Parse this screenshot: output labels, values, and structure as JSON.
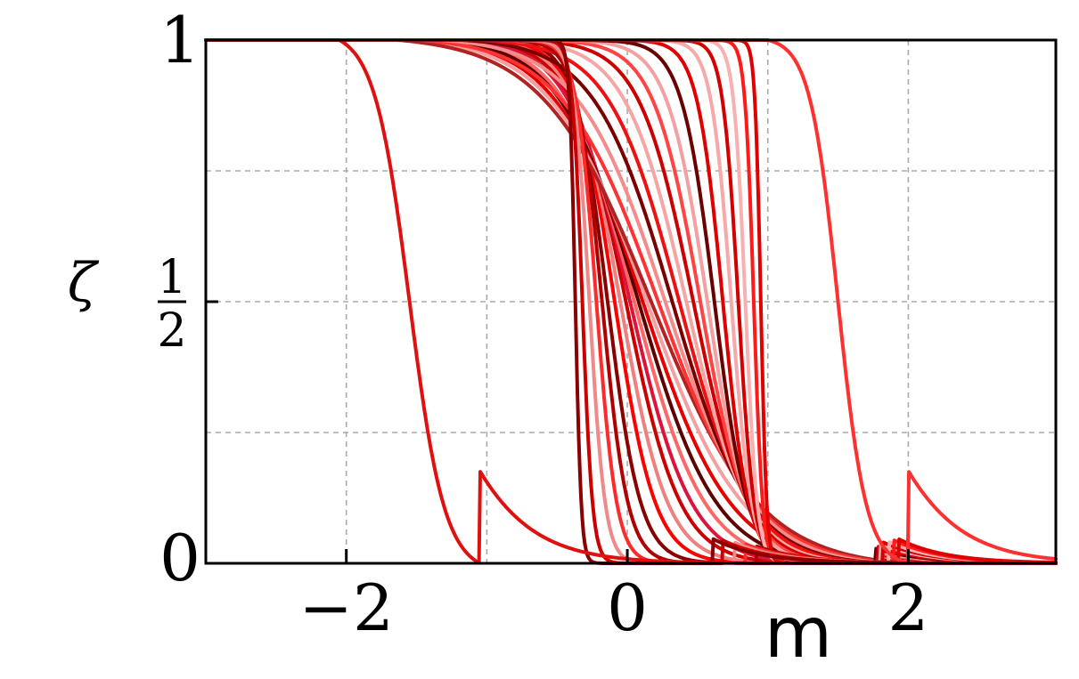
{
  "chart_data": {
    "type": "line",
    "xlabel": "m",
    "ylabel": "ζ",
    "xlim": [
      -3.0,
      3.05
    ],
    "ylim": [
      0,
      1
    ],
    "grid": true,
    "grid_style": "dashed",
    "legend": "none",
    "x_ticks": [
      {
        "value": -2,
        "label": "−2"
      },
      {
        "value": 0,
        "label": "0"
      },
      {
        "value": 2,
        "label": "2"
      }
    ],
    "y_ticks": [
      {
        "value": 0,
        "label": "0"
      },
      {
        "value": 0.5,
        "numerator": "1",
        "denominator": "2"
      },
      {
        "value": 1,
        "label": "1"
      }
    ],
    "x_gridlines": [
      -2,
      -1,
      0,
      1,
      2
    ],
    "y_gridlines": [
      0,
      0.25,
      0.5,
      0.75,
      1
    ],
    "series_model": "zeta(m) = 1/2 - (1/2) * tanh(k*(m - c)) / tanh(k*L) for |m - c| <= L; logistic tails 1/(1+exp(t*(m - c))) outside",
    "series": [
      {
        "k": 4.3,
        "center": -0.14,
        "half_width": 1.15,
        "tail_slope": 2.2,
        "color": "#8b0000"
      },
      {
        "k": 3.5,
        "center": -0.09,
        "half_width": 1.2,
        "tail_slope": 2.2,
        "color": "#ff0000"
      },
      {
        "k": 3.0,
        "center": -0.05,
        "half_width": 1.25,
        "tail_slope": 2.2,
        "color": "#f08080"
      },
      {
        "k": 2.6,
        "center": -0.01,
        "half_width": 1.3,
        "tail_slope": 2.2,
        "color": "#cc0000"
      },
      {
        "k": 2.3,
        "center": 0.02,
        "half_width": 1.35,
        "tail_slope": 2.2,
        "color": "#dc143c"
      },
      {
        "k": 2.0,
        "center": 0.05,
        "half_width": 1.45,
        "tail_slope": 2.2,
        "color": "#ff6666"
      },
      {
        "k": 1.8,
        "center": 0.08,
        "half_width": 1.5,
        "tail_slope": 2.2,
        "color": "#5c0000"
      },
      {
        "k": 1.6,
        "center": 0.11,
        "half_width": 1.6,
        "tail_slope": 2.2,
        "color": "#e60000"
      },
      {
        "k": 1.45,
        "center": 0.14,
        "half_width": 1.7,
        "tail_slope": 2.2,
        "color": "#f4a0a0"
      },
      {
        "k": 1.3,
        "center": 0.17,
        "half_width": 1.8,
        "tail_slope": 2.2,
        "color": "#b22222"
      },
      {
        "k": 1.45,
        "center": 0.22,
        "half_width": 1.7,
        "tail_slope": 2.2,
        "color": "#ff3333"
      },
      {
        "k": 1.6,
        "center": 0.27,
        "half_width": 1.6,
        "tail_slope": 2.2,
        "color": "#f58c8c"
      },
      {
        "k": 1.8,
        "center": 0.32,
        "half_width": 1.5,
        "tail_slope": 2.2,
        "color": "#7a0000"
      },
      {
        "k": 2.0,
        "center": 0.37,
        "half_width": 1.45,
        "tail_slope": 2.2,
        "color": "#ee1111"
      },
      {
        "k": 2.3,
        "center": 0.42,
        "half_width": 1.35,
        "tail_slope": 2.2,
        "color": "#f6a5a5"
      },
      {
        "k": 2.6,
        "center": 0.47,
        "half_width": 1.3,
        "tail_slope": 2.2,
        "color": "#cc0000"
      },
      {
        "k": 3.0,
        "center": 0.52,
        "half_width": 1.25,
        "tail_slope": 2.2,
        "color": "#ff4444"
      },
      {
        "k": 3.5,
        "center": 0.57,
        "half_width": 1.2,
        "tail_slope": 2.2,
        "color": "#f5a0a0"
      },
      {
        "k": 4.3,
        "center": 0.62,
        "half_width": 1.15,
        "tail_slope": 2.2,
        "color": "#6b0000"
      },
      {
        "k": 5.5,
        "center": 0.68,
        "half_width": 1.1,
        "tail_slope": 2.2,
        "color": "#e00000"
      },
      {
        "k": 7.0,
        "center": 0.74,
        "half_width": 1.06,
        "tail_slope": 2.2,
        "color": "#f7a8a8"
      },
      {
        "k": 9.0,
        "center": 0.79,
        "half_width": 1.03,
        "tail_slope": 2.2,
        "color": "#d40000"
      },
      {
        "k": 12.0,
        "center": 0.84,
        "half_width": 1.02,
        "tail_slope": 2.2,
        "color": "#f9b0b0"
      },
      {
        "k": 16.0,
        "center": 0.9,
        "half_width": 1.0,
        "tail_slope": 2.2,
        "color": "#ff1a1a"
      },
      {
        "k": 24.0,
        "center": 0.95,
        "half_width": 0.98,
        "tail_slope": 2.2,
        "color": "#e00000"
      },
      {
        "k": 5.5,
        "center": -0.18,
        "half_width": 1.1,
        "tail_slope": 2.2,
        "color": "#b00000"
      },
      {
        "k": 7.0,
        "center": -0.22,
        "half_width": 1.06,
        "tail_slope": 2.2,
        "color": "#ff2a2a"
      },
      {
        "k": 9.0,
        "center": -0.27,
        "half_width": 1.03,
        "tail_slope": 2.2,
        "color": "#f08a8a"
      },
      {
        "k": 14.0,
        "center": -0.32,
        "half_width": 1.0,
        "tail_slope": 2.2,
        "color": "#cc0000"
      },
      {
        "k": 24.0,
        "center": -0.37,
        "half_width": 0.98,
        "tail_slope": 2.2,
        "color": "#8b0000"
      },
      {
        "k": 5.0,
        "center": 1.5,
        "half_width": 0.5,
        "tail_slope": 2.2,
        "color": "#ff3030"
      },
      {
        "k": 4.0,
        "center": -1.55,
        "half_width": 0.5,
        "tail_slope": 2.2,
        "color": "#e01010"
      }
    ]
  }
}
